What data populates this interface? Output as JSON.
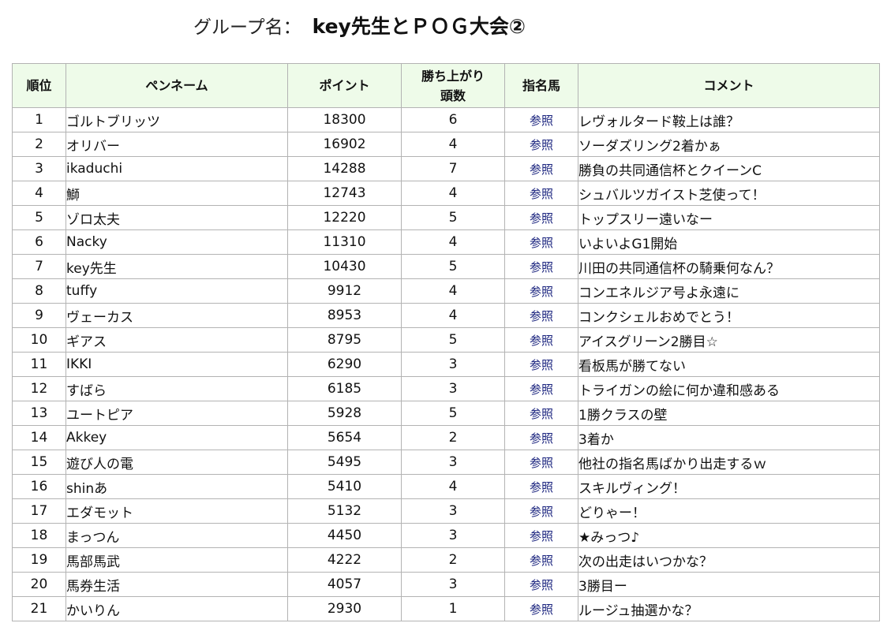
{
  "header": {
    "group_label": "グループ名：",
    "group_name": "key先生とＰＯＧ大会②"
  },
  "table": {
    "columns": {
      "rank": "順位",
      "pen_name": "ペンネーム",
      "points": "ポイント",
      "wins_line1": "勝ち上がり",
      "wins_line2": "頭数",
      "horses": "指名馬",
      "comment": "コメント"
    },
    "rows": [
      {
        "rank": "1",
        "name": "ゴルトブリッツ",
        "points": "18300",
        "wins": "6",
        "ref": "参照",
        "comment": "レヴォルタード鞍上は誰？"
      },
      {
        "rank": "2",
        "name": "オリバー",
        "points": "16902",
        "wins": "4",
        "ref": "参照",
        "comment": "ソーダズリング2着かぁ"
      },
      {
        "rank": "3",
        "name": "ikaduchi",
        "points": "14288",
        "wins": "7",
        "ref": "参照",
        "comment": "勝負の共同通信杯とクイーンC"
      },
      {
        "rank": "4",
        "name": "鰤",
        "points": "12743",
        "wins": "4",
        "ref": "参照",
        "comment": "シュバルツガイスト芝使って！"
      },
      {
        "rank": "5",
        "name": "ゾロ太夫",
        "points": "12220",
        "wins": "5",
        "ref": "参照",
        "comment": "トップスリー遠いなー"
      },
      {
        "rank": "6",
        "name": "Nacky",
        "points": "11310",
        "wins": "4",
        "ref": "参照",
        "comment": "いよいよG1開始"
      },
      {
        "rank": "7",
        "name": "key先生",
        "points": "10430",
        "wins": "5",
        "ref": "参照",
        "comment": "川田の共同通信杯の騎乗何なん？"
      },
      {
        "rank": "8",
        "name": "tuffy",
        "points": "9912",
        "wins": "4",
        "ref": "参照",
        "comment": "コンエネルジア号よ永遠に"
      },
      {
        "rank": "9",
        "name": "ヴェーカス",
        "points": "8953",
        "wins": "4",
        "ref": "参照",
        "comment": "コンクシェルおめでとう！"
      },
      {
        "rank": "10",
        "name": "ギアス",
        "points": "8795",
        "wins": "5",
        "ref": "参照",
        "comment": "アイスグリーン2勝目☆"
      },
      {
        "rank": "11",
        "name": "IKKI",
        "points": "6290",
        "wins": "3",
        "ref": "参照",
        "comment": "看板馬が勝てない"
      },
      {
        "rank": "12",
        "name": "すばら",
        "points": "6185",
        "wins": "3",
        "ref": "参照",
        "comment": "トライガンの絵に何か違和感ある"
      },
      {
        "rank": "13",
        "name": "ユートピア",
        "points": "5928",
        "wins": "5",
        "ref": "参照",
        "comment": "1勝クラスの壁"
      },
      {
        "rank": "14",
        "name": "Akkey",
        "points": "5654",
        "wins": "2",
        "ref": "参照",
        "comment": "3着か"
      },
      {
        "rank": "15",
        "name": "遊び人の電",
        "points": "5495",
        "wins": "3",
        "ref": "参照",
        "comment": "他社の指名馬ばかり出走するｗ"
      },
      {
        "rank": "16",
        "name": "shinあ",
        "points": "5410",
        "wins": "4",
        "ref": "参照",
        "comment": "スキルヴィング！"
      },
      {
        "rank": "17",
        "name": "エダモット",
        "points": "5132",
        "wins": "3",
        "ref": "参照",
        "comment": "どりゃー！"
      },
      {
        "rank": "18",
        "name": "まっつん",
        "points": "4450",
        "wins": "3",
        "ref": "参照",
        "comment": "★みっつ♪"
      },
      {
        "rank": "19",
        "name": "馬部馬武",
        "points": "4222",
        "wins": "2",
        "ref": "参照",
        "comment": "次の出走はいつかな？"
      },
      {
        "rank": "20",
        "name": "馬券生活",
        "points": "4057",
        "wins": "3",
        "ref": "参照",
        "comment": "3勝目ー"
      },
      {
        "rank": "21",
        "name": "かいりん",
        "points": "2930",
        "wins": "1",
        "ref": "参照",
        "comment": "ルージュ抽選かな？"
      }
    ]
  }
}
